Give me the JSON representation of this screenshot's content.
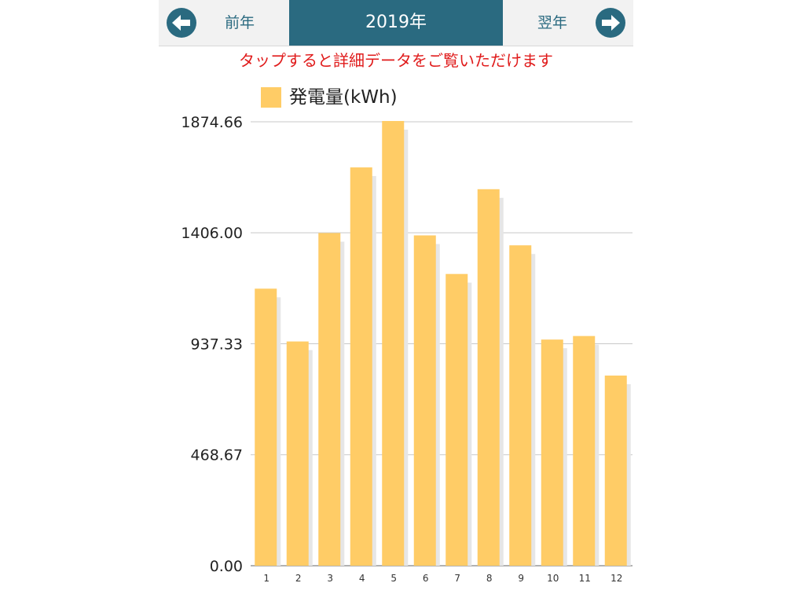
{
  "nav": {
    "prev_label": "前年",
    "next_label": "翌年",
    "year": "2019年",
    "prev_icon": "arrow-left-icon",
    "next_icon": "arrow-right-icon"
  },
  "hint": "タップすると詳細データをご覧いただけます",
  "colors": {
    "header": "#2a6a80",
    "bar": "#ffcc66",
    "bar_shadow": "#e6e6e6",
    "hint": "#e01b1b"
  },
  "chart_data": {
    "type": "bar",
    "categories": [
      "1",
      "2",
      "3",
      "4",
      "5",
      "6",
      "7",
      "8",
      "9",
      "10",
      "11",
      "12"
    ],
    "series": [
      {
        "name": "発電量(kWh)",
        "values": [
          1170,
          947,
          1405,
          1682,
          1878,
          1395,
          1232,
          1590,
          1353,
          955,
          970,
          803
        ]
      }
    ],
    "yticks": [
      "0.00",
      "468.67",
      "937.33",
      "1406.00",
      "1874.66"
    ],
    "ylim": [
      0,
      1874.66
    ],
    "grid": true,
    "legend": "top-left"
  }
}
